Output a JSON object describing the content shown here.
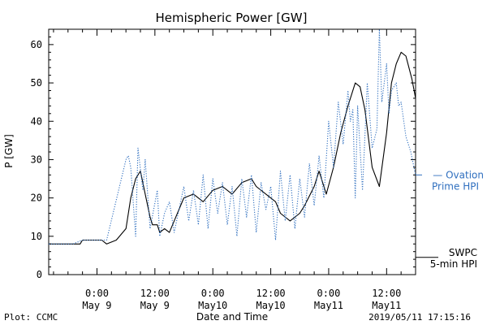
{
  "chart_data": {
    "type": "line",
    "title": "Hemispheric Power [GW]",
    "xlabel": "Date and Time",
    "ylabel": "P [GW]",
    "xlim": [
      "2019-05-08 14:00",
      "2019-05-11 18:00"
    ],
    "ylim": [
      0,
      64
    ],
    "yticks": [
      0,
      10,
      20,
      30,
      40,
      50,
      60
    ],
    "xticks": [
      {
        "t": "2019-05-09 00:00",
        "line1": "0:00",
        "line2": "May 9"
      },
      {
        "t": "2019-05-09 12:00",
        "line1": "12:00",
        "line2": "May 9"
      },
      {
        "t": "2019-05-10 00:00",
        "line1": "0:00",
        "line2": "May10"
      },
      {
        "t": "2019-05-10 12:00",
        "line1": "12:00",
        "line2": "May10"
      },
      {
        "t": "2019-05-11 00:00",
        "line1": "0:00",
        "line2": "May11"
      },
      {
        "t": "2019-05-11 12:00",
        "line1": "12:00",
        "line2": "May11"
      }
    ],
    "grid": false,
    "series": [
      {
        "name": "SWPC 5-min HPI",
        "color": "#000000",
        "style": "solid",
        "x": [
          "2019-05-08 14:00",
          "2019-05-08 20:30",
          "2019-05-08 21:00",
          "2019-05-09 01:00",
          "2019-05-09 02:00",
          "2019-05-09 04:00",
          "2019-05-09 06:00",
          "2019-05-09 07:00",
          "2019-05-09 08:00",
          "2019-05-09 09:00",
          "2019-05-09 10:00",
          "2019-05-09 11:00",
          "2019-05-09 11:30",
          "2019-05-09 12:30",
          "2019-05-09 13:00",
          "2019-05-09 14:00",
          "2019-05-09 15:00",
          "2019-05-09 16:00",
          "2019-05-09 18:00",
          "2019-05-09 20:00",
          "2019-05-09 22:00",
          "2019-05-10 00:00",
          "2019-05-10 02:00",
          "2019-05-10 04:00",
          "2019-05-10 06:00",
          "2019-05-10 08:00",
          "2019-05-10 09:00",
          "2019-05-10 11:00",
          "2019-05-10 13:00",
          "2019-05-10 14:00",
          "2019-05-10 16:00",
          "2019-05-10 18:00",
          "2019-05-10 19:00",
          "2019-05-10 21:00",
          "2019-05-10 22:00",
          "2019-05-10 23:30",
          "2019-05-11 01:00",
          "2019-05-11 02:30",
          "2019-05-11 04:00",
          "2019-05-11 05:30",
          "2019-05-11 06:30",
          "2019-05-11 07:30",
          "2019-05-11 09:00",
          "2019-05-11 10:30",
          "2019-05-11 12:00",
          "2019-05-11 13:00",
          "2019-05-11 14:00",
          "2019-05-11 15:00",
          "2019-05-11 16:00",
          "2019-05-11 17:15",
          "2019-05-11 18:00"
        ],
        "values": [
          8,
          8,
          9,
          9,
          8,
          9,
          12,
          20,
          25,
          27,
          21,
          15,
          13,
          13,
          11,
          12,
          11,
          14,
          20,
          21,
          19,
          22,
          23,
          21,
          24,
          25,
          23,
          21,
          19,
          16,
          14,
          16,
          18,
          23,
          27,
          21,
          28,
          37,
          44,
          50,
          49,
          43,
          28,
          23,
          37,
          50,
          55,
          58,
          57,
          51,
          46
        ]
      },
      {
        "name": "Ovation Prime HPI",
        "color": "#2f6fbf",
        "style": "dotted",
        "x": [
          "2019-05-08 14:00",
          "2019-05-08 19:00",
          "2019-05-08 21:00",
          "2019-05-09 02:00",
          "2019-05-09 06:00",
          "2019-05-09 06:30",
          "2019-05-09 07:00",
          "2019-05-09 08:00",
          "2019-05-09 08:30",
          "2019-05-09 09:30",
          "2019-05-09 10:00",
          "2019-05-09 11:00",
          "2019-05-09 12:30",
          "2019-05-09 13:00",
          "2019-05-09 14:00",
          "2019-05-09 15:00",
          "2019-05-09 16:00",
          "2019-05-09 18:00",
          "2019-05-09 19:00",
          "2019-05-09 20:00",
          "2019-05-09 21:00",
          "2019-05-09 22:00",
          "2019-05-09 23:00",
          "2019-05-10 00:00",
          "2019-05-10 01:00",
          "2019-05-10 02:00",
          "2019-05-10 03:00",
          "2019-05-10 04:00",
          "2019-05-10 05:00",
          "2019-05-10 06:00",
          "2019-05-10 07:00",
          "2019-05-10 08:00",
          "2019-05-10 09:00",
          "2019-05-10 10:00",
          "2019-05-10 11:00",
          "2019-05-10 12:00",
          "2019-05-10 13:00",
          "2019-05-10 14:00",
          "2019-05-10 15:00",
          "2019-05-10 16:00",
          "2019-05-10 17:00",
          "2019-05-10 18:00",
          "2019-05-10 19:00",
          "2019-05-10 20:00",
          "2019-05-10 21:00",
          "2019-05-10 22:00",
          "2019-05-10 23:00",
          "2019-05-11 00:00",
          "2019-05-11 01:00",
          "2019-05-11 02:00",
          "2019-05-11 03:00",
          "2019-05-11 04:00",
          "2019-05-11 04:30",
          "2019-05-11 05:00",
          "2019-05-11 05:30",
          "2019-05-11 06:00",
          "2019-05-11 07:00",
          "2019-05-11 08:00",
          "2019-05-11 09:00",
          "2019-05-11 10:00",
          "2019-05-11 10:30",
          "2019-05-11 11:00",
          "2019-05-11 12:00",
          "2019-05-11 12:30",
          "2019-05-11 13:00",
          "2019-05-11 14:00",
          "2019-05-11 14:30",
          "2019-05-11 15:00",
          "2019-05-11 16:00",
          "2019-05-11 17:00",
          "2019-05-11 18:00"
        ],
        "values": [
          8,
          8,
          9,
          9,
          30,
          31,
          28,
          10,
          33,
          22,
          30,
          12,
          22,
          10,
          16,
          19,
          11,
          23,
          14,
          22,
          13,
          26,
          12,
          25,
          16,
          24,
          13,
          23,
          10,
          25,
          15,
          26,
          11,
          24,
          17,
          23,
          9,
          27,
          14,
          26,
          12,
          25,
          15,
          29,
          18,
          31,
          20,
          40,
          28,
          45,
          34,
          48,
          40,
          43,
          20,
          44,
          22,
          50,
          33,
          38,
          64,
          45,
          55,
          42,
          48,
          50,
          44,
          45,
          36,
          32,
          26
        ]
      }
    ],
    "legend": [
      {
        "series": "Ovation Prime HPI",
        "line1": "— Ovation",
        "line2": "Prime HPI",
        "color": "#2f6fbf",
        "placement": "right"
      },
      {
        "series": "SWPC 5-min HPI",
        "line1": "SWPC",
        "line2": "5-min HPI",
        "color": "#000000",
        "placement": "bottom-right"
      }
    ]
  },
  "footer": {
    "left": "Plot: CCMC",
    "right": "2019/05/11 17:15:16"
  }
}
